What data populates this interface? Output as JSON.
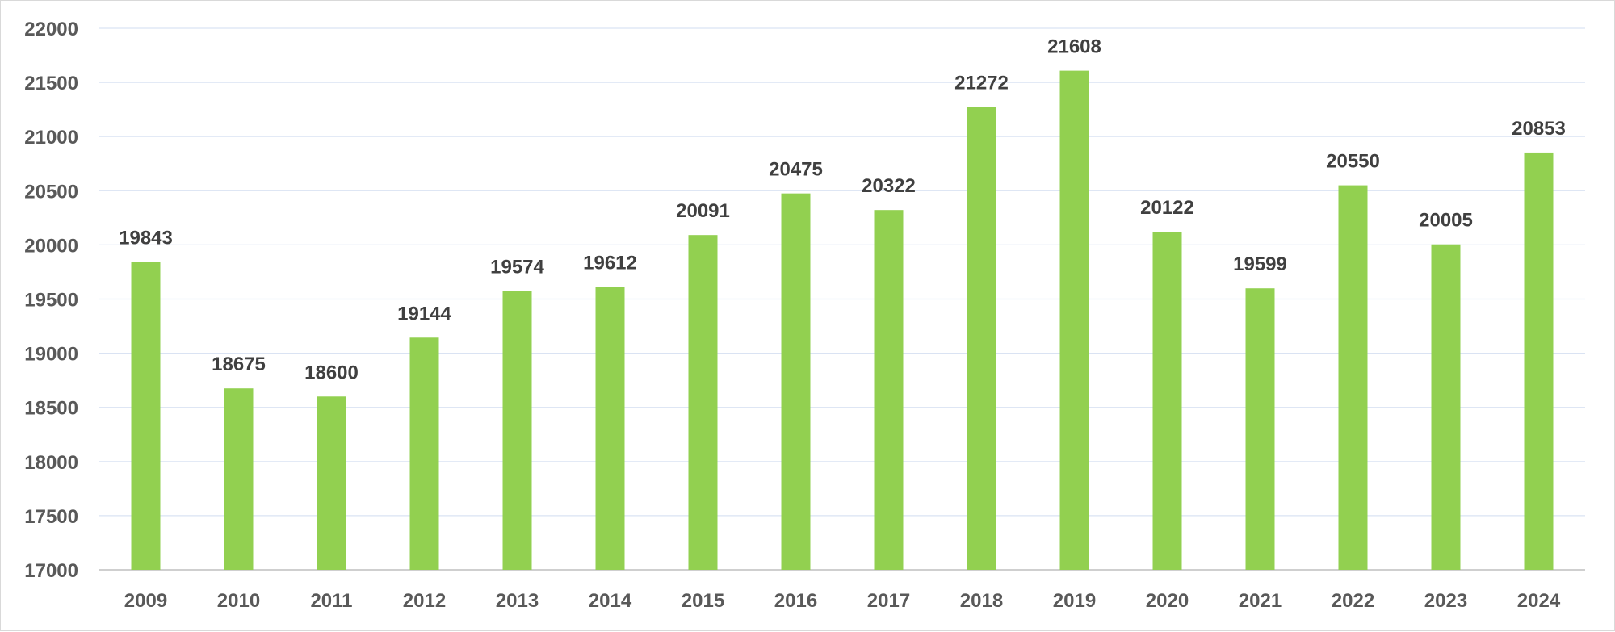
{
  "chart_data": {
    "type": "bar",
    "categories": [
      "2009",
      "2010",
      "2011",
      "2012",
      "2013",
      "2014",
      "2015",
      "2016",
      "2017",
      "2018",
      "2019",
      "2020",
      "2021",
      "2022",
      "2023",
      "2024"
    ],
    "values": [
      19843,
      18675,
      18600,
      19144,
      19574,
      19612,
      20091,
      20475,
      20322,
      21272,
      21608,
      20122,
      19599,
      20550,
      20005,
      20853
    ],
    "title": "",
    "xlabel": "",
    "ylabel": "",
    "ylim": [
      17000,
      22000
    ],
    "yticks": [
      "17000",
      "17500",
      "18000",
      "18500",
      "19000",
      "19500",
      "20000",
      "20500",
      "21000",
      "21500",
      "22000"
    ],
    "grid": true,
    "data_labels": true,
    "legend": "none",
    "colors": {
      "bar": "#92d050",
      "gridline": "#dae3f3",
      "axis": "#bfbfbf"
    }
  }
}
